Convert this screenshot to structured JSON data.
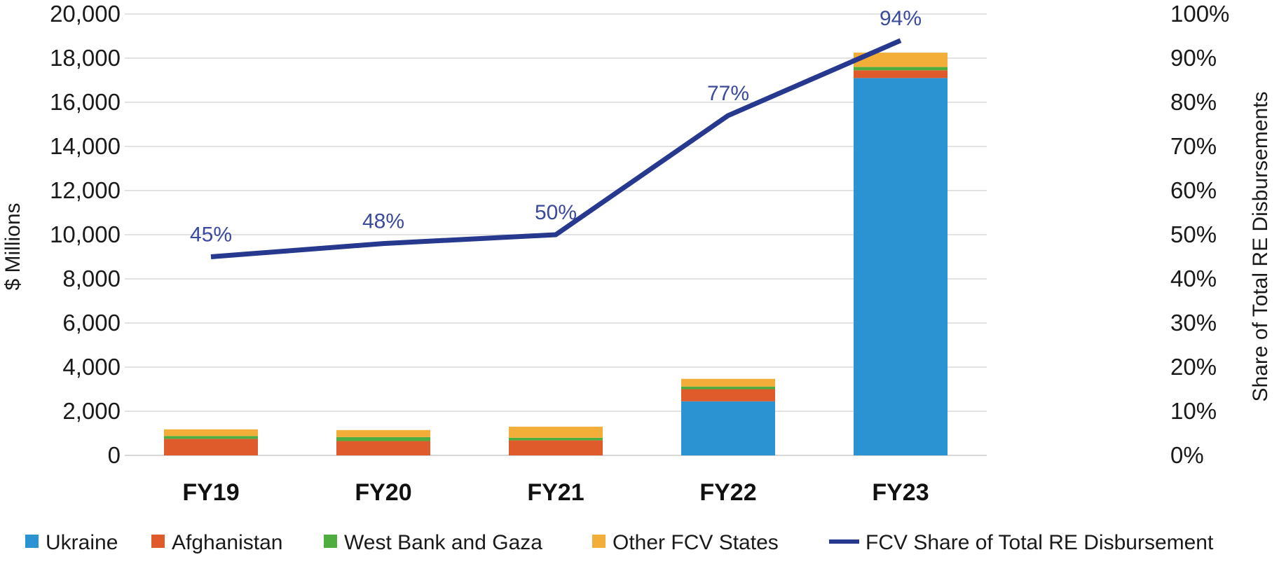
{
  "chart_data": {
    "type": "bar",
    "stacked": true,
    "categories": [
      "FY19",
      "FY20",
      "FY21",
      "FY22",
      "FY23"
    ],
    "series": [
      {
        "name": "Ukraine",
        "color": "#2b93d1",
        "values": [
          0,
          0,
          0,
          2450,
          17100
        ]
      },
      {
        "name": "Afghanistan",
        "color": "#e05b2b",
        "values": [
          750,
          650,
          680,
          550,
          350
        ]
      },
      {
        "name": "West Bank and Gaza",
        "color": "#4fad3f",
        "values": [
          130,
          180,
          120,
          120,
          150
        ]
      },
      {
        "name": "Other FCV States",
        "color": "#f2ae38",
        "values": [
          300,
          320,
          500,
          350,
          650
        ]
      }
    ],
    "line_series": {
      "name": "FCV Share of Total RE Disbursement",
      "color": "#27388f",
      "axis": "right",
      "values": [
        45,
        48,
        50,
        77,
        94
      ],
      "labels": [
        "45%",
        "48%",
        "50%",
        "77%",
        "94%"
      ]
    },
    "ylabel": "$ Millions",
    "ylim": [
      0,
      20000
    ],
    "yticks": [
      "0",
      "2,000",
      "4,000",
      "6,000",
      "8,000",
      "10,000",
      "12,000",
      "14,000",
      "16,000",
      "18,000",
      "20,000"
    ],
    "y2label": "Share of Total RE Disbursements",
    "y2lim": [
      0,
      100
    ],
    "y2ticks": [
      "0%",
      "10%",
      "20%",
      "30%",
      "40%",
      "50%",
      "60%",
      "70%",
      "80%",
      "90%",
      "100%"
    ],
    "grid": true,
    "legend": "bottom"
  }
}
